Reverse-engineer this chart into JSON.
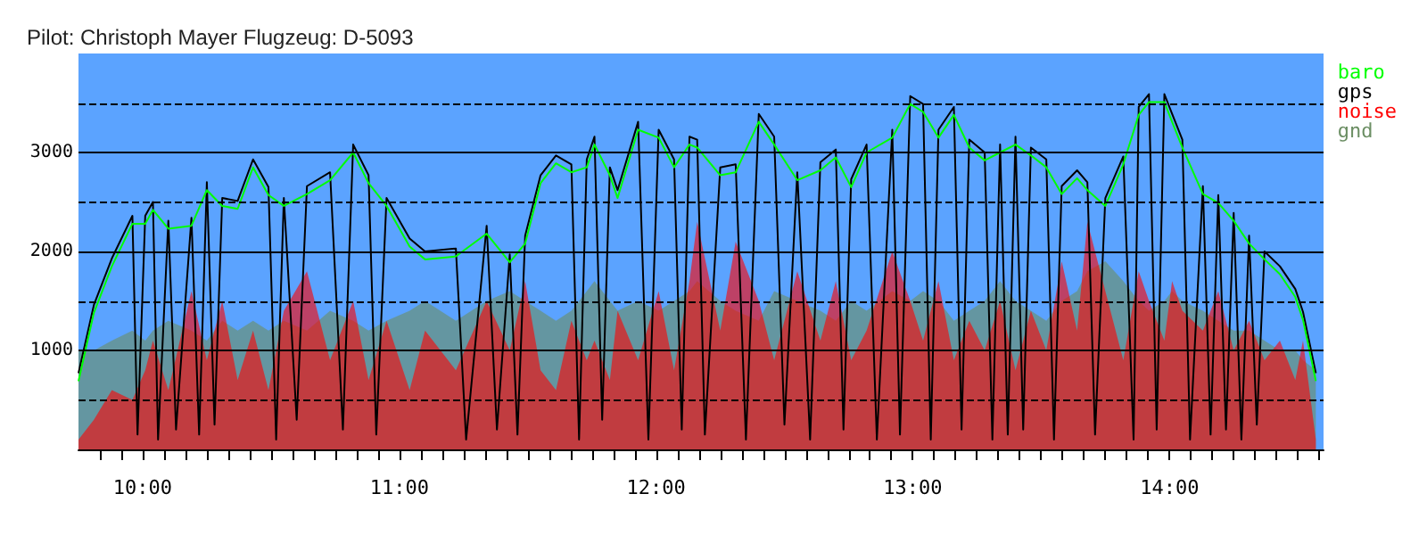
{
  "chart_data": {
    "type": "line",
    "title": "Pilot: Christoph Mayer Flugzeug: D-5093",
    "x": [
      9.75,
      9.81,
      9.88,
      9.96,
      10.01,
      10.04,
      10.1,
      10.19,
      10.25,
      10.31,
      10.37,
      10.43,
      10.49,
      10.55,
      10.64,
      10.73,
      10.82,
      10.88,
      10.95,
      11.04,
      11.1,
      11.22,
      11.34,
      11.43,
      11.49,
      11.55,
      11.61,
      11.67,
      11.73,
      11.76,
      11.82,
      11.85,
      11.93,
      12.01,
      12.07,
      12.13,
      12.16,
      12.25,
      12.31,
      12.4,
      12.46,
      12.55,
      12.64,
      12.7,
      12.76,
      12.82,
      12.92,
      12.99,
      13.04,
      13.1,
      13.16,
      13.22,
      13.28,
      13.34,
      13.4,
      13.46,
      13.52,
      13.58,
      13.64,
      13.68,
      13.75,
      13.82,
      13.88,
      13.92,
      13.98,
      14.01,
      14.05,
      14.13,
      14.19,
      14.25,
      14.31,
      14.37,
      14.43,
      14.49,
      14.52,
      14.57
    ],
    "series": [
      {
        "name": "baro",
        "color": "#00ff00",
        "values": [
          690,
          1380,
          1850,
          2280,
          2280,
          2420,
          2230,
          2260,
          2620,
          2460,
          2430,
          2850,
          2570,
          2460,
          2580,
          2720,
          3000,
          2690,
          2460,
          2050,
          1920,
          1950,
          2180,
          1890,
          2080,
          2690,
          2890,
          2800,
          2850,
          3080,
          2770,
          2540,
          3230,
          3150,
          2850,
          3080,
          3050,
          2770,
          2800,
          3310,
          3080,
          2720,
          2820,
          2950,
          2650,
          3000,
          3150,
          3490,
          3410,
          3150,
          3380,
          3050,
          2920,
          3000,
          3080,
          2970,
          2850,
          2580,
          2740,
          2620,
          2460,
          2880,
          3380,
          3510,
          3510,
          3310,
          3050,
          2580,
          2490,
          2310,
          2080,
          1920,
          1770,
          1540,
          1310,
          690
        ]
      },
      {
        "name": "gps",
        "color": "#000000",
        "x": [
          9.75,
          9.81,
          9.88,
          9.96,
          9.98,
          10.01,
          10.04,
          10.06,
          10.1,
          10.13,
          10.19,
          10.22,
          10.25,
          10.28,
          10.31,
          10.37,
          10.43,
          10.49,
          10.52,
          10.55,
          10.6,
          10.64,
          10.73,
          10.78,
          10.82,
          10.88,
          10.91,
          10.95,
          11.04,
          11.1,
          11.22,
          11.26,
          11.34,
          11.38,
          11.43,
          11.46,
          11.49,
          11.55,
          11.61,
          11.67,
          11.7,
          11.73,
          11.76,
          11.79,
          11.82,
          11.85,
          11.93,
          11.97,
          12.01,
          12.07,
          12.1,
          12.13,
          12.16,
          12.19,
          12.25,
          12.31,
          12.35,
          12.4,
          12.46,
          12.5,
          12.55,
          12.6,
          12.64,
          12.7,
          12.73,
          12.76,
          12.82,
          12.86,
          12.92,
          12.95,
          12.99,
          13.04,
          13.07,
          13.1,
          13.16,
          13.19,
          13.22,
          13.28,
          13.31,
          13.34,
          13.37,
          13.4,
          13.43,
          13.46,
          13.52,
          13.55,
          13.58,
          13.64,
          13.68,
          13.71,
          13.75,
          13.82,
          13.86,
          13.88,
          13.92,
          13.95,
          13.98,
          14.01,
          14.05,
          14.08,
          14.13,
          14.16,
          14.19,
          14.22,
          14.25,
          14.28,
          14.31,
          14.34,
          14.37,
          14.43,
          14.49,
          14.52,
          14.57
        ],
        "values": [
          770,
          1460,
          1930,
          2360,
          150,
          2360,
          2500,
          100,
          2310,
          200,
          2340,
          150,
          2700,
          250,
          2540,
          2510,
          2930,
          2650,
          100,
          2540,
          300,
          2660,
          2800,
          200,
          3080,
          2770,
          150,
          2540,
          2130,
          2000,
          2030,
          100,
          2260,
          200,
          1970,
          150,
          2160,
          2770,
          2970,
          2880,
          100,
          2930,
          3160,
          300,
          2850,
          2620,
          3310,
          100,
          3230,
          2930,
          200,
          3160,
          3130,
          150,
          2850,
          2880,
          100,
          3390,
          3160,
          250,
          2800,
          100,
          2900,
          3030,
          200,
          2730,
          3080,
          100,
          3230,
          150,
          3570,
          3490,
          100,
          3230,
          3460,
          200,
          3130,
          3000,
          100,
          3080,
          150,
          3160,
          200,
          3050,
          2930,
          100,
          2660,
          2820,
          2700,
          150,
          2540,
          2960,
          100,
          3460,
          3590,
          200,
          3590,
          3390,
          3130,
          100,
          2660,
          150,
          2570,
          200,
          2390,
          100,
          2160,
          250,
          2000,
          1850,
          1620,
          1390,
          770
        ]
      },
      {
        "name": "noise",
        "type": "area",
        "color": "#ff0000",
        "values": [
          100,
          300,
          600,
          500,
          800,
          1100,
          600,
          1600,
          900,
          1500,
          700,
          1200,
          600,
          1400,
          1800,
          900,
          1500,
          700,
          1300,
          600,
          1200,
          800,
          1500,
          1000,
          1700,
          800,
          600,
          1300,
          900,
          1100,
          700,
          1400,
          900,
          1600,
          800,
          1700,
          2300,
          1200,
          2100,
          1500,
          900,
          1800,
          1100,
          1700,
          900,
          1200,
          2000,
          1500,
          1100,
          1700,
          900,
          1300,
          1000,
          1500,
          800,
          1400,
          1000,
          1900,
          1200,
          2300,
          1600,
          900,
          1800,
          1500,
          1100,
          1700,
          1400,
          1200,
          1600,
          1000,
          1300,
          900,
          1100,
          700,
          1100,
          100
        ]
      },
      {
        "name": "gnd",
        "type": "area",
        "color": "#6b8e63",
        "values": [
          1000,
          1000,
          1100,
          1200,
          1100,
          1200,
          1300,
          1200,
          1100,
          1300,
          1200,
          1300,
          1200,
          1300,
          1200,
          1400,
          1300,
          1200,
          1300,
          1400,
          1500,
          1300,
          1500,
          1600,
          1500,
          1400,
          1300,
          1400,
          1600,
          1700,
          1500,
          1400,
          1500,
          1400,
          1500,
          1600,
          1700,
          1500,
          1400,
          1300,
          1600,
          1500,
          1400,
          1300,
          1500,
          1400,
          1600,
          1500,
          1600,
          1500,
          1300,
          1400,
          1500,
          1700,
          1500,
          1400,
          1300,
          1500,
          1600,
          1800,
          1900,
          1700,
          1500,
          1400,
          1500,
          1600,
          1500,
          1400,
          1300,
          1200,
          1200,
          1100,
          1000,
          1000,
          900,
          800
        ]
      }
    ],
    "xlim": [
      9.75,
      14.6
    ],
    "xticks": [
      {
        "value": 9.8333,
        "label": null
      },
      {
        "value": 9.9167,
        "label": null
      },
      {
        "value": 10,
        "label": "10:00"
      },
      {
        "value": 10.0833,
        "label": null
      },
      {
        "value": 10.1667,
        "label": null
      },
      {
        "value": 10.25,
        "label": null
      },
      {
        "value": 10.3333,
        "label": null
      },
      {
        "value": 10.4167,
        "label": null
      },
      {
        "value": 10.5,
        "label": null
      },
      {
        "value": 10.5833,
        "label": null
      },
      {
        "value": 10.6667,
        "label": null
      },
      {
        "value": 10.75,
        "label": null
      },
      {
        "value": 10.8333,
        "label": null
      },
      {
        "value": 10.9167,
        "label": null
      },
      {
        "value": 11,
        "label": "11:00"
      },
      {
        "value": 11.0833,
        "label": null
      },
      {
        "value": 11.1667,
        "label": null
      },
      {
        "value": 11.25,
        "label": null
      },
      {
        "value": 11.3333,
        "label": null
      },
      {
        "value": 11.4167,
        "label": null
      },
      {
        "value": 11.5,
        "label": null
      },
      {
        "value": 11.5833,
        "label": null
      },
      {
        "value": 11.6667,
        "label": null
      },
      {
        "value": 11.75,
        "label": null
      },
      {
        "value": 11.8333,
        "label": null
      },
      {
        "value": 11.9167,
        "label": null
      },
      {
        "value": 12,
        "label": "12:00"
      },
      {
        "value": 12.0833,
        "label": null
      },
      {
        "value": 12.1667,
        "label": null
      },
      {
        "value": 12.25,
        "label": null
      },
      {
        "value": 12.3333,
        "label": null
      },
      {
        "value": 12.4167,
        "label": null
      },
      {
        "value": 12.5,
        "label": null
      },
      {
        "value": 12.5833,
        "label": null
      },
      {
        "value": 12.6667,
        "label": null
      },
      {
        "value": 12.75,
        "label": null
      },
      {
        "value": 12.8333,
        "label": null
      },
      {
        "value": 12.9167,
        "label": null
      },
      {
        "value": 13,
        "label": "13:00"
      },
      {
        "value": 13.0833,
        "label": null
      },
      {
        "value": 13.1667,
        "label": null
      },
      {
        "value": 13.25,
        "label": null
      },
      {
        "value": 13.3333,
        "label": null
      },
      {
        "value": 13.4167,
        "label": null
      },
      {
        "value": 13.5,
        "label": null
      },
      {
        "value": 13.5833,
        "label": null
      },
      {
        "value": 13.6667,
        "label": null
      },
      {
        "value": 13.75,
        "label": null
      },
      {
        "value": 13.8333,
        "label": null
      },
      {
        "value": 13.9167,
        "label": null
      },
      {
        "value": 14,
        "label": "14:00"
      },
      {
        "value": 14.0833,
        "label": null
      },
      {
        "value": 14.1667,
        "label": null
      },
      {
        "value": 14.25,
        "label": null
      },
      {
        "value": 14.3333,
        "label": null
      },
      {
        "value": 14.4167,
        "label": null
      },
      {
        "value": 14.5,
        "label": null
      },
      {
        "value": 14.5833,
        "label": null
      }
    ],
    "ylim": [
      0,
      4000
    ],
    "yticks": [
      {
        "value": 500,
        "label": null
      },
      1000,
      {
        "value": 1500,
        "label": null
      },
      2000,
      {
        "value": 2500,
        "label": null
      },
      3000,
      {
        "value": 3500,
        "label": null
      }
    ],
    "grid": "y",
    "legend": "top right",
    "marker": "none",
    "line_style": "solid"
  }
}
